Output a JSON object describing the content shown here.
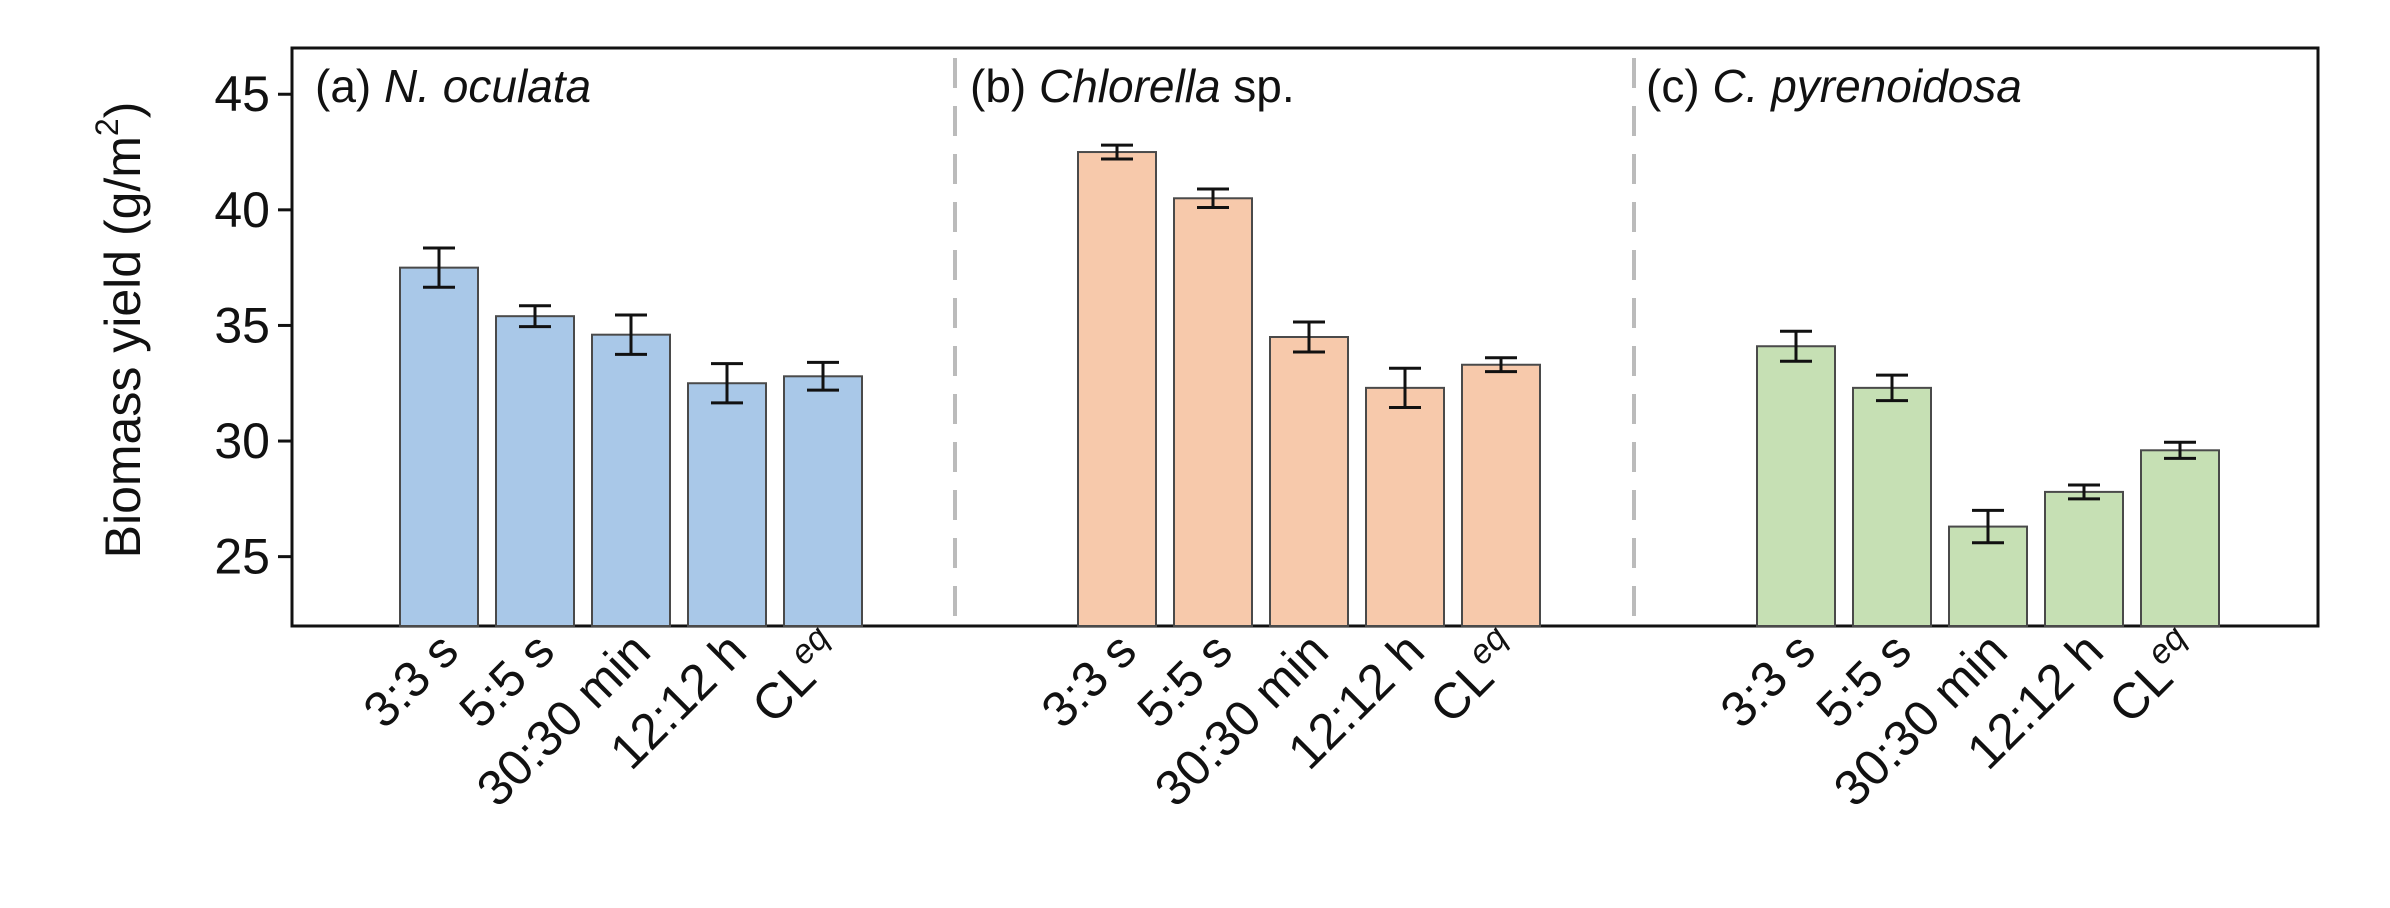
{
  "chart_data": {
    "type": "bar",
    "ylabel": "Biomass yield (g/m",
    "ylabel_sup": "2",
    "ylabel_close": ")",
    "ylim": [
      22,
      47
    ],
    "yticks": [
      25,
      30,
      35,
      40,
      45
    ],
    "categories": [
      "3:3 s",
      "5:5 s",
      "30:30 min",
      "12:12 h",
      "CL"
    ],
    "last_category_sup": "eq",
    "panels": [
      {
        "prefix": "(a)",
        "species": "N. oculata",
        "species_suffix": "",
        "color": "#a9c8e8",
        "values": [
          37.5,
          35.4,
          34.6,
          32.5,
          32.8
        ],
        "errors": [
          0.85,
          0.45,
          0.85,
          0.85,
          0.6
        ]
      },
      {
        "prefix": "(b)",
        "species": "Chlorella",
        "species_suffix": " sp.",
        "color": "#f7c9ab",
        "values": [
          42.5,
          40.5,
          34.5,
          32.3,
          33.3
        ],
        "errors": [
          0.3,
          0.4,
          0.65,
          0.85,
          0.3
        ]
      },
      {
        "prefix": "(c)",
        "species": "C. pyrenoidosa",
        "species_suffix": "",
        "color": "#c6e0b4",
        "values": [
          34.1,
          32.3,
          26.3,
          27.8,
          29.6
        ],
        "errors": [
          0.65,
          0.55,
          0.7,
          0.3,
          0.35
        ]
      }
    ],
    "divider_color": "#bbbbbb",
    "bar_edge_color": "#4a4a4a"
  }
}
